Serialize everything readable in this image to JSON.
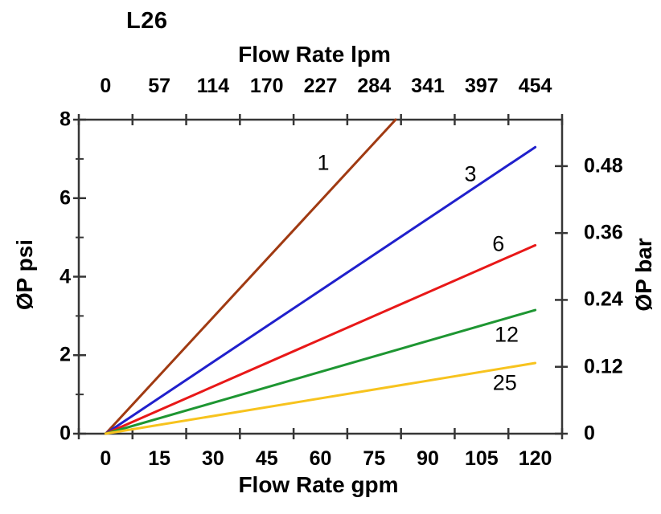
{
  "title": "L26",
  "chart_data": {
    "type": "line",
    "title": "L26",
    "grid": false,
    "legend": "labels on curves",
    "axes": {
      "bottom": {
        "label": "Flow Rate gpm",
        "ticks": [
          0,
          15,
          30,
          45,
          60,
          75,
          90,
          105,
          120
        ],
        "range": [
          0,
          120
        ]
      },
      "top": {
        "label": "Flow Rate lpm",
        "ticks": [
          0,
          57,
          114,
          170,
          227,
          284,
          341,
          397,
          454
        ],
        "range": [
          0,
          454
        ]
      },
      "left": {
        "label": "ØP psi",
        "ticks": [
          0,
          2,
          4,
          6,
          8
        ],
        "minor_ticks": [
          1,
          3,
          5,
          7
        ],
        "range": [
          0,
          8
        ]
      },
      "right": {
        "label": "ØP bar",
        "ticks": [
          0,
          0.12,
          0.24,
          0.36,
          0.48
        ],
        "range": [
          0,
          0.48
        ]
      }
    },
    "series": [
      {
        "name": "1",
        "color": "#A03A12",
        "points_gpm_psi": [
          [
            0,
            0
          ],
          [
            81,
            8.0
          ]
        ],
        "label_at": {
          "gpm": 60.8,
          "psi": 6.9
        }
      },
      {
        "name": "3",
        "color": "#2020CC",
        "points_gpm_psi": [
          [
            0,
            0
          ],
          [
            120,
            7.3
          ]
        ],
        "label_at": {
          "gpm": 101.9,
          "psi": 6.6
        }
      },
      {
        "name": "6",
        "color": "#E81818",
        "points_gpm_psi": [
          [
            0,
            0
          ],
          [
            120,
            4.8
          ]
        ],
        "label_at": {
          "gpm": 109.7,
          "psi": 4.82
        }
      },
      {
        "name": "12",
        "color": "#1E9632",
        "points_gpm_psi": [
          [
            0,
            0
          ],
          [
            120,
            3.15
          ]
        ],
        "label_at": {
          "gpm": 112.0,
          "psi": 2.52
        }
      },
      {
        "name": "25",
        "color": "#F7C31E",
        "points_gpm_psi": [
          [
            0,
            0
          ],
          [
            120,
            1.8
          ]
        ],
        "label_at": {
          "gpm": 111.5,
          "psi": 1.29
        }
      }
    ],
    "axis_color": "#363636",
    "bar_per_psi_conversion": 14.2
  }
}
